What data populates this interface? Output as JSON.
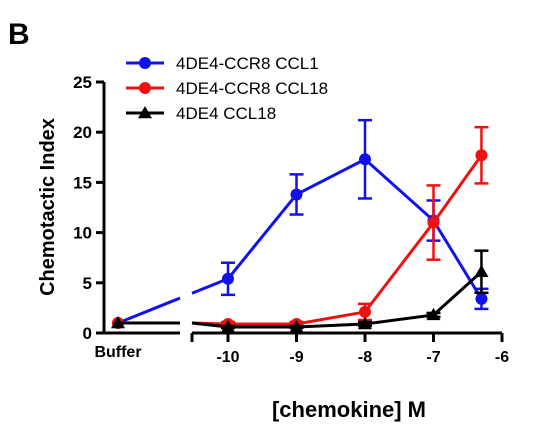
{
  "panel_label": "B",
  "chart_data": {
    "type": "line",
    "xlabel": "[chemokine] M",
    "ylabel": "Chemotactic Index",
    "ylim": [
      0,
      25
    ],
    "yticks": [
      "0",
      "5",
      "10",
      "15",
      "20",
      "25"
    ],
    "xlim": [
      -10.5,
      -6
    ],
    "xticks": [
      "-10",
      "-9",
      "-8",
      "-7",
      "-6"
    ],
    "buffer_label": "Buffer",
    "legend_position": "top-left",
    "grid": false,
    "series": [
      {
        "name": "4DE4-CCR8 CCL1",
        "color": "#1111ee",
        "marker": "circle",
        "buffer": {
          "y": 1.0
        },
        "points": [
          {
            "x": -10,
            "y": 5.4,
            "err": 1.6
          },
          {
            "x": -9,
            "y": 13.8,
            "err": 2.0
          },
          {
            "x": -8,
            "y": 17.3,
            "err": 3.9
          },
          {
            "x": -7,
            "y": 11.2,
            "err": 2.0
          },
          {
            "x": -6.3,
            "y": 3.4,
            "err": 1.0
          }
        ]
      },
      {
        "name": "4DE4-CCR8 CCL18",
        "color": "#ee1111",
        "marker": "circle",
        "buffer": {
          "y": 1.0
        },
        "points": [
          {
            "x": -10,
            "y": 0.9,
            "err": 0.2
          },
          {
            "x": -9,
            "y": 0.9,
            "err": 0.2
          },
          {
            "x": -8,
            "y": 2.1,
            "err": 0.8
          },
          {
            "x": -7,
            "y": 11.0,
            "err": 3.7
          },
          {
            "x": -6.3,
            "y": 17.7,
            "err": 2.8
          }
        ]
      },
      {
        "name": "4DE4 CCL18",
        "color": "#000000",
        "marker": "triangle",
        "buffer": {
          "y": 1.0
        },
        "points": [
          {
            "x": -10,
            "y": 0.6,
            "err": 0.1
          },
          {
            "x": -9,
            "y": 0.6,
            "err": 0.1
          },
          {
            "x": -8,
            "y": 0.9,
            "err": 0.2
          },
          {
            "x": -7,
            "y": 1.8,
            "err": 0.2
          },
          {
            "x": -6.3,
            "y": 6.1,
            "err": 2.1
          }
        ]
      }
    ]
  }
}
